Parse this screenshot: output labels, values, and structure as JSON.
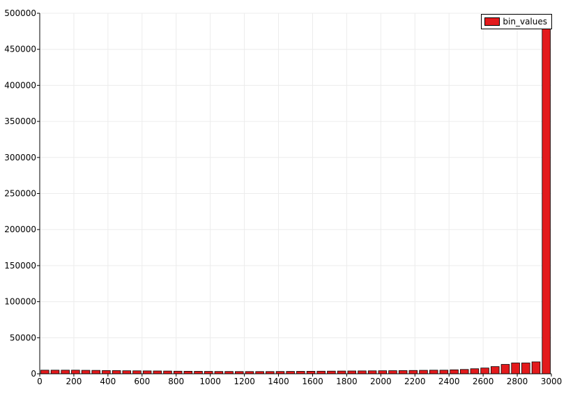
{
  "chart_data": {
    "type": "bar",
    "title": "",
    "xlabel": "",
    "ylabel": "",
    "xlim": [
      0,
      3000
    ],
    "ylim": [
      0,
      500000
    ],
    "x_ticks": [
      "0",
      "200",
      "400",
      "600",
      "800",
      "1000",
      "1200",
      "1400",
      "1600",
      "1800",
      "2000",
      "2200",
      "2400",
      "2600",
      "2800",
      "3000"
    ],
    "y_ticks": [
      "0",
      "50000",
      "100000",
      "150000",
      "200000",
      "250000",
      "300000",
      "350000",
      "400000",
      "450000",
      "500000"
    ],
    "grid": true,
    "legend_position": "top-right",
    "bin_width": 60,
    "series": [
      {
        "name": "bin_values",
        "color": "#e31a1c",
        "x": [
          0,
          60,
          120,
          180,
          240,
          300,
          360,
          420,
          480,
          540,
          600,
          660,
          720,
          780,
          840,
          900,
          960,
          1020,
          1080,
          1140,
          1200,
          1260,
          1320,
          1380,
          1440,
          1500,
          1560,
          1620,
          1680,
          1740,
          1800,
          1860,
          1920,
          1980,
          2040,
          2100,
          2160,
          2220,
          2280,
          2340,
          2400,
          2460,
          2520,
          2580,
          2640,
          2700,
          2760,
          2820,
          2880,
          2940
        ],
        "values": [
          5000,
          5000,
          5000,
          5000,
          4800,
          4700,
          4500,
          4400,
          4200,
          4100,
          4000,
          3900,
          3800,
          3600,
          3500,
          3400,
          3300,
          3200,
          3200,
          3100,
          3100,
          3100,
          3100,
          3200,
          3300,
          3400,
          3500,
          3600,
          3700,
          3800,
          3900,
          4000,
          4100,
          4200,
          4300,
          4400,
          4600,
          4800,
          5000,
          5000,
          5500,
          6000,
          7000,
          8000,
          10000,
          13000,
          15000,
          15000,
          16500,
          490000
        ]
      }
    ]
  }
}
